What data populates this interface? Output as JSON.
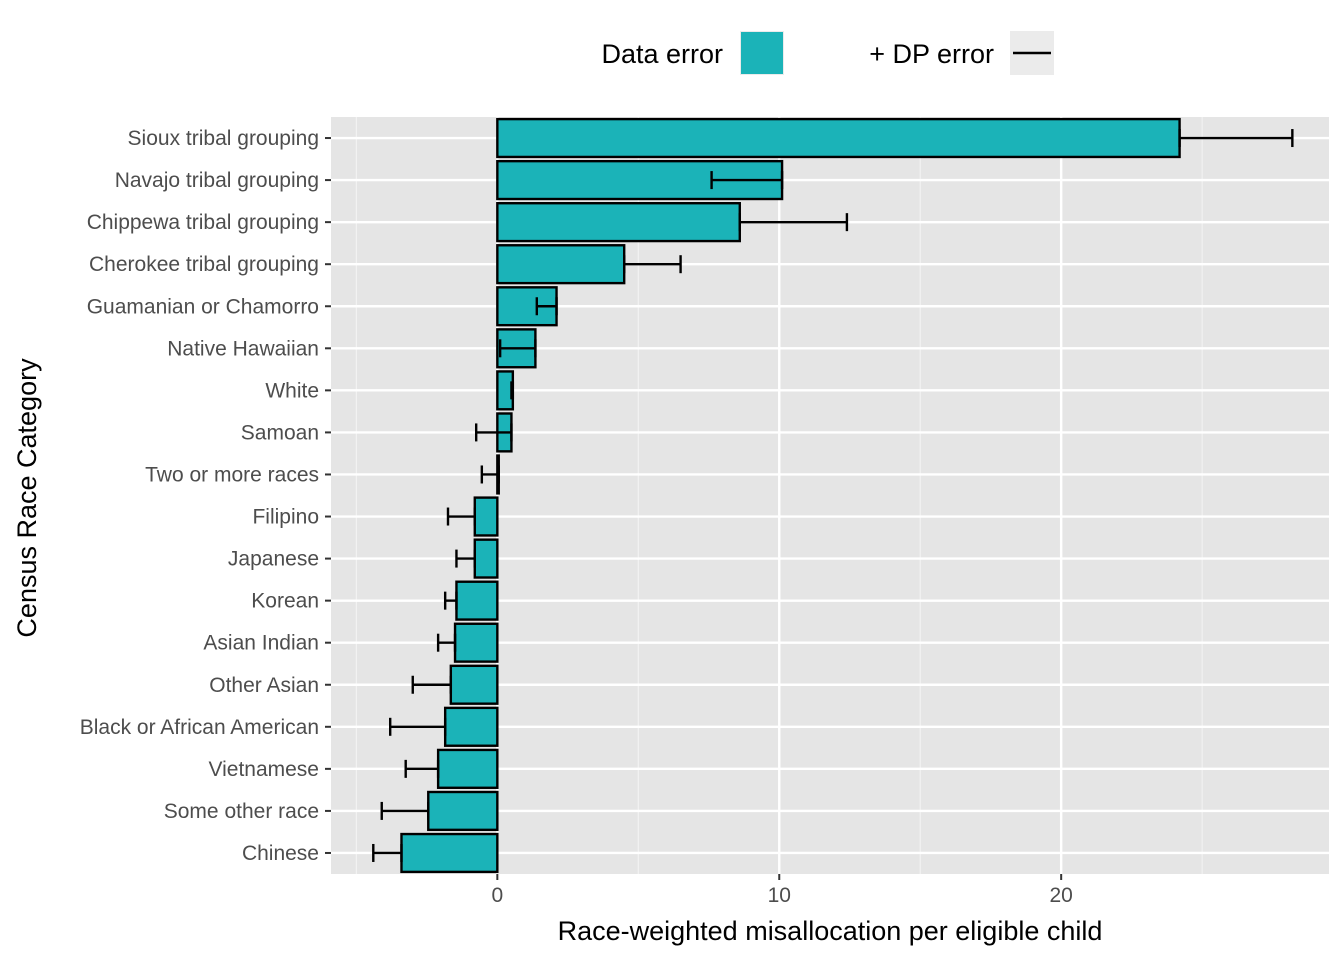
{
  "chart_data": {
    "type": "bar",
    "orientation": "horizontal",
    "categories": [
      "Sioux tribal grouping",
      "Navajo tribal grouping",
      "Chippewa tribal grouping",
      "Cherokee tribal grouping",
      "Guamanian or Chamorro",
      "Native Hawaiian",
      "White",
      "Samoan",
      "Two or more races",
      "Filipino",
      "Japanese",
      "Korean",
      "Asian Indian",
      "Other Asian",
      "Black or African American",
      "Vietnamese",
      "Some other race",
      "Chinese"
    ],
    "series": [
      {
        "name": "Data error",
        "color": "#1bb3b8",
        "values": [
          24.2,
          10.1,
          8.6,
          4.5,
          2.1,
          1.35,
          0.55,
          0.5,
          0.05,
          -0.8,
          -0.8,
          -1.45,
          -1.5,
          -1.65,
          -1.85,
          -2.1,
          -2.45,
          -3.4
        ]
      },
      {
        "name": "+ DP error",
        "color": "#000000",
        "values": [
          28.2,
          7.6,
          12.4,
          6.5,
          1.4,
          0.1,
          0.5,
          -0.75,
          -0.55,
          -1.75,
          -1.45,
          -1.85,
          -2.1,
          -3.0,
          -3.8,
          -3.25,
          -4.1,
          -4.4
        ]
      }
    ],
    "xlabel": "Race-weighted misallocation per eligible child",
    "ylabel": "Census Race Category",
    "xlim": [
      -5.9,
      29.5
    ],
    "x_ticks": [
      0,
      10,
      20
    ],
    "x_minor_ticks": [
      -5,
      5,
      15,
      25
    ],
    "grid": true,
    "panel_background": "#e5e5e5",
    "bar_color": "#1bb3b8",
    "legend": {
      "position": "top",
      "items": [
        {
          "label": "Data error",
          "symbol": "fill"
        },
        {
          "label": "+ DP error",
          "symbol": "line"
        }
      ]
    }
  }
}
